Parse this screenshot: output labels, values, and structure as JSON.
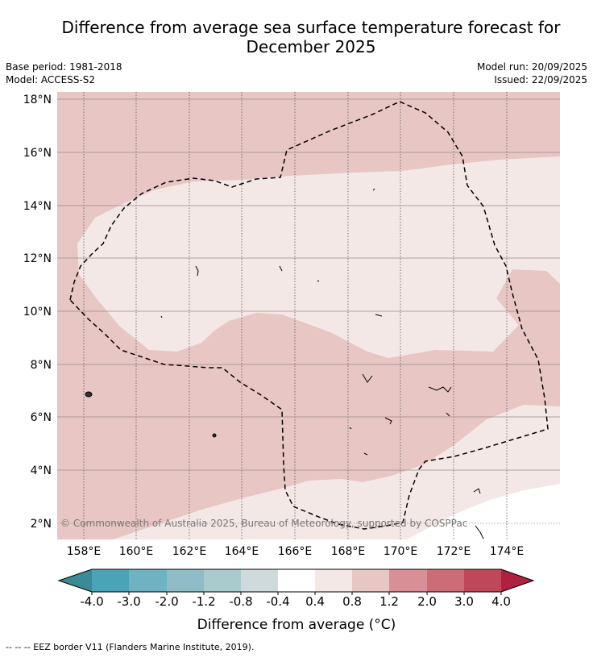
{
  "title": {
    "line1": "Difference from average sea surface temperature forecast for",
    "line2": "December 2025"
  },
  "meta": {
    "base_period": "Base period: 1981-2018",
    "model": "Model: ACCESS-S2",
    "model_run": "Model run: 20/09/2025",
    "issued": "Issued: 22/09/2025"
  },
  "map": {
    "lat_labels": [
      "18°N",
      "16°N",
      "14°N",
      "12°N",
      "10°N",
      "8°N",
      "6°N",
      "4°N",
      "2°N"
    ],
    "lon_labels": [
      "158°E",
      "160°E",
      "162°E",
      "164°E",
      "166°E",
      "168°E",
      "170°E",
      "172°E",
      "174°E"
    ],
    "copyright": "© Commonwealth of Australia 2025, Bureau of Meteorology, supported by COSPPac"
  },
  "colorbar": {
    "ticks": [
      "-4.0",
      "-3.0",
      "-2.0",
      "-1.2",
      "-0.8",
      "-0.4",
      "0.4",
      "0.8",
      "1.2",
      "2.0",
      "3.0",
      "4.0"
    ],
    "colors": {
      "under": "#3a8a98",
      "bins": [
        "#4aa3b6",
        "#6fb2c1",
        "#8fbcc6",
        "#aacbcd",
        "#cfdadd",
        "#ffffff",
        "#f4e8e7",
        "#e8c6c3",
        "#d88f95",
        "#cc6c74",
        "#bf4858"
      ],
      "over": "#b02040"
    },
    "label": "Difference from average (°C)"
  },
  "field_colors": {
    "band_04_08": "#f4e8e7",
    "band_08_12": "#e8c6c3",
    "band_m04_04": "#ffffff"
  },
  "legend_note": "-- -- -- EEZ border V11 (Flanders Marine Institute, 2019)."
}
